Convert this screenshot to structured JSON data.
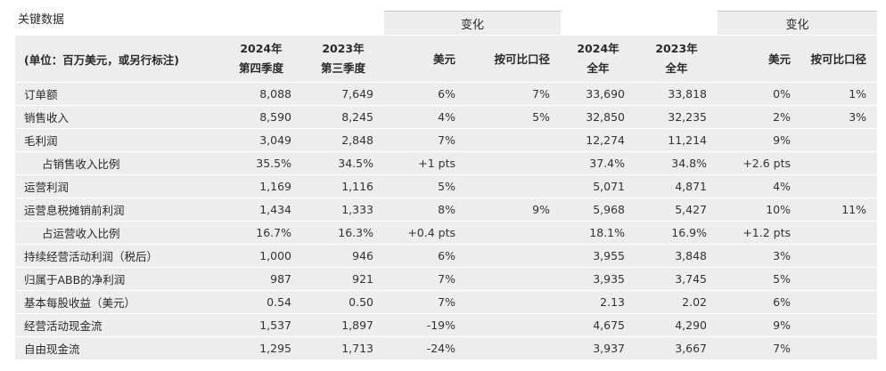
{
  "title": "关键数据",
  "group_labels": {
    "quarter_change": "变化",
    "year_change": "变化"
  },
  "headers": {
    "unit": "(单位：百万美元，或另行标注)",
    "q4_2024": [
      "2024年",
      "第四季度"
    ],
    "q3_2023": [
      "2023年",
      "第三季度"
    ],
    "usd": "美元",
    "comparable": "按可比口径",
    "fy_2024": [
      "2024年",
      "全年"
    ],
    "fy_2023": [
      "2023年",
      "全年"
    ],
    "usd_fy": "美元",
    "comparable_fy": "按可比口径"
  },
  "rows": [
    {
      "label": "订单额",
      "indent": false,
      "q4": "8,088",
      "q3": "7,649",
      "q_usd": "6%",
      "q_comp": "7%",
      "fy24": "33,690",
      "fy23": "33,818",
      "fy_usd": "0%",
      "fy_comp": "1%"
    },
    {
      "label": "销售收入",
      "indent": false,
      "q4": "8,590",
      "q3": "8,245",
      "q_usd": "4%",
      "q_comp": "5%",
      "fy24": "32,850",
      "fy23": "32,235",
      "fy_usd": "2%",
      "fy_comp": "3%"
    },
    {
      "label": "毛利润",
      "indent": false,
      "q4": "3,049",
      "q3": "2,848",
      "q_usd": "7%",
      "q_comp": "",
      "fy24": "12,274",
      "fy23": "11,214",
      "fy_usd": "9%",
      "fy_comp": ""
    },
    {
      "label": "占销售收入比例",
      "indent": true,
      "q4": "35.5%",
      "q3": "34.5%",
      "q_usd": "+1 pts",
      "q_comp": "",
      "fy24": "37.4%",
      "fy23": "34.8%",
      "fy_usd": "+2.6 pts",
      "fy_comp": ""
    },
    {
      "label": "运营利润",
      "indent": false,
      "q4": "1,169",
      "q3": "1,116",
      "q_usd": "5%",
      "q_comp": "",
      "fy24": "5,071",
      "fy23": "4,871",
      "fy_usd": "4%",
      "fy_comp": ""
    },
    {
      "label": "运营息税摊销前利润",
      "indent": false,
      "q4": "1,434",
      "q3": "1,333",
      "q_usd": "8%",
      "q_comp": "9%",
      "fy24": "5,968",
      "fy23": "5,427",
      "fy_usd": "10%",
      "fy_comp": "11%"
    },
    {
      "label": "占运营收入比例",
      "indent": true,
      "q4": "16.7%",
      "q3": "16.3%",
      "q_usd": "+0.4 pts",
      "q_comp": "",
      "fy24": "18.1%",
      "fy23": "16.9%",
      "fy_usd": "+1.2 pts",
      "fy_comp": ""
    },
    {
      "label": "持续经营活动利润（税后）",
      "indent": false,
      "q4": "1,000",
      "q3": "946",
      "q_usd": "6%",
      "q_comp": "",
      "fy24": "3,955",
      "fy23": "3,848",
      "fy_usd": "3%",
      "fy_comp": ""
    },
    {
      "label": "归属于ABB的净利润",
      "indent": false,
      "q4": "987",
      "q3": "921",
      "q_usd": "7%",
      "q_comp": "",
      "fy24": "3,935",
      "fy23": "3,745",
      "fy_usd": "5%",
      "fy_comp": ""
    },
    {
      "label": "基本每股收益（美元）",
      "indent": false,
      "q4": "0.54",
      "q3": "0.50",
      "q_usd": "7%",
      "q_comp": "",
      "fy24": "2.13",
      "fy23": "2.02",
      "fy_usd": "6%",
      "fy_comp": ""
    },
    {
      "label": "经营活动现金流",
      "indent": false,
      "q4": "1,537",
      "q3": "1,897",
      "q_usd": "-19%",
      "q_comp": "",
      "fy24": "4,675",
      "fy23": "4,290",
      "fy_usd": "9%",
      "fy_comp": ""
    },
    {
      "label": "自由现金流",
      "indent": false,
      "q4": "1,295",
      "q3": "1,713",
      "q_usd": "-24%",
      "q_comp": "",
      "fy24": "3,937",
      "fy23": "3,667",
      "fy_usd": "7%",
      "fy_comp": ""
    }
  ]
}
